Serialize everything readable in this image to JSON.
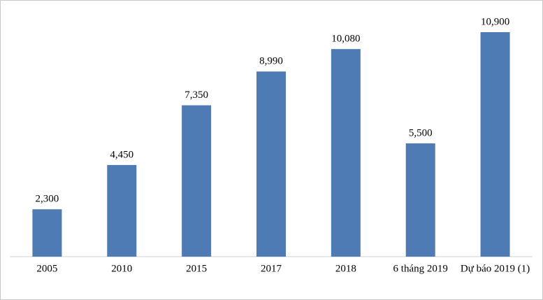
{
  "chart_data": {
    "type": "bar",
    "categories": [
      "2005",
      "2010",
      "2015",
      "2017",
      "2018",
      "6 tháng 2019",
      "Dự báo 2019 (1)"
    ],
    "values": [
      2300,
      4450,
      7350,
      8990,
      10080,
      5500,
      10900
    ],
    "value_labels": [
      "2,300",
      "4,450",
      "7,350",
      "8,990",
      "10,080",
      "5,500",
      "10,900"
    ],
    "color": "#4f7bb5"
  }
}
